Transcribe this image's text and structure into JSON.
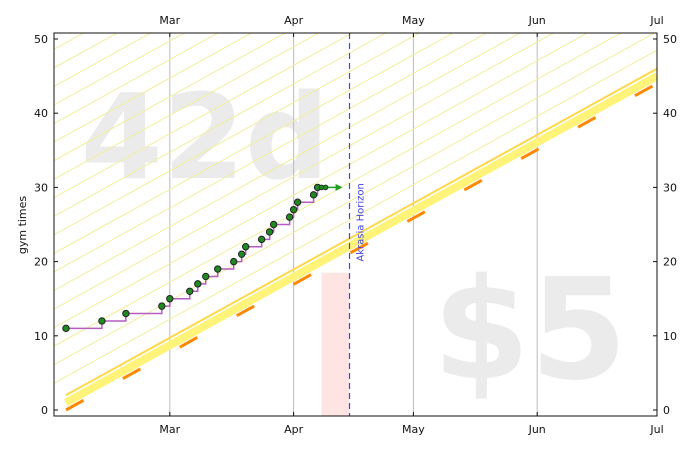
{
  "chart_data": {
    "type": "line",
    "ylabel": "gym times",
    "ylim": [
      0,
      50
    ],
    "xlim": [
      "2024-02-01",
      "2024-07-01"
    ],
    "x_ticks": [
      "Mar",
      "Apr",
      "May",
      "Jun",
      "Jul"
    ],
    "x_tick_dates": [
      "2024-03-01",
      "2024-04-01",
      "2024-05-01",
      "2024-06-01",
      "2024-07-01"
    ],
    "y_ticks": [
      0,
      10,
      20,
      30,
      40,
      50
    ],
    "grid": "vertical at month ticks",
    "watermark_left": "42d",
    "watermark_right": "$5",
    "akrasia_label": "Akrasia Horizon",
    "akrasia_date": "2024-04-15",
    "series": [
      {
        "kind": "datapoints",
        "x": [
          "2024-02-04",
          "2024-02-13",
          "2024-02-19",
          "2024-02-28",
          "2024-03-01",
          "2024-03-06",
          "2024-03-08",
          "2024-03-10",
          "2024-03-13",
          "2024-03-17",
          "2024-03-19",
          "2024-03-20",
          "2024-03-24",
          "2024-03-26",
          "2024-03-27",
          "2024-03-31",
          "2024-04-01",
          "2024-04-02",
          "2024-04-06",
          "2024-04-07",
          "2024-04-08",
          "2024-04-09"
        ],
        "y": [
          11,
          12,
          13,
          14,
          15,
          16,
          17,
          18,
          19,
          20,
          21,
          22,
          23,
          24,
          25,
          26,
          27,
          28,
          29,
          30,
          30,
          30
        ]
      },
      {
        "kind": "bright-red-line",
        "x": [
          "2024-02-04",
          "2024-07-01"
        ],
        "y": [
          0,
          44
        ]
      },
      {
        "kind": "safe-lane-line",
        "x": [
          "2024-02-04",
          "2024-07-01"
        ],
        "y": [
          2,
          46
        ]
      }
    ],
    "colors": {
      "datapoint": "#1f8a1f",
      "datapoint_edge": "#222222",
      "step_line": "#b65cc2",
      "bright_line": "#ff8800",
      "lane": "#fff37a",
      "lane_line": "#ffd84a",
      "stripe": "#f2ee9c",
      "horizon": "#4444dd",
      "today_band": "#ffe4e4",
      "arrow": "#1fa01f"
    }
  }
}
